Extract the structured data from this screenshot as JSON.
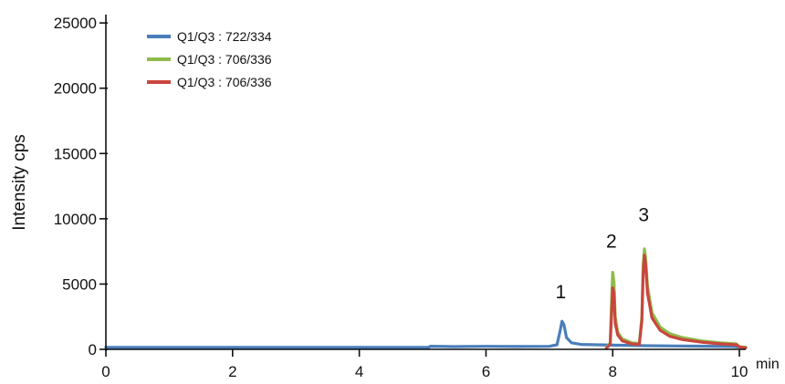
{
  "chart_data": {
    "type": "line",
    "title": "",
    "xlabel": "min",
    "ylabel": "Intensity cps",
    "xlim": [
      0,
      10.1
    ],
    "ylim": [
      0,
      25500
    ],
    "x_ticks": [
      "0",
      "2",
      "4",
      "6",
      "8",
      "10"
    ],
    "y_ticks": [
      "0",
      "5000",
      "10000",
      "15000",
      "20000",
      "25000"
    ],
    "grid": false,
    "legend_position": "top-left",
    "series": [
      {
        "name": "Q1/Q3 : 722/334",
        "color": "#4a7ebb",
        "points": [
          [
            0,
            150
          ],
          [
            5.1,
            150
          ],
          [
            5.12,
            240
          ],
          [
            5.5,
            210
          ],
          [
            6.0,
            230
          ],
          [
            6.5,
            220
          ],
          [
            7.0,
            230
          ],
          [
            7.12,
            350
          ],
          [
            7.17,
            1400
          ],
          [
            7.2,
            2150
          ],
          [
            7.23,
            1900
          ],
          [
            7.27,
            900
          ],
          [
            7.35,
            500
          ],
          [
            7.5,
            380
          ],
          [
            8.0,
            320
          ],
          [
            8.5,
            280
          ],
          [
            9.0,
            260
          ],
          [
            9.5,
            240
          ],
          [
            9.9,
            220
          ],
          [
            10.0,
            180
          ],
          [
            10.1,
            150
          ]
        ]
      },
      {
        "name": "Q1/Q3 : 706/336",
        "color": "#8fbb4a",
        "points": [
          [
            7.9,
            100
          ],
          [
            7.96,
            500
          ],
          [
            7.98,
            3500
          ],
          [
            8.0,
            5900
          ],
          [
            8.02,
            5200
          ],
          [
            8.04,
            2500
          ],
          [
            8.08,
            1300
          ],
          [
            8.15,
            800
          ],
          [
            8.3,
            500
          ],
          [
            8.42,
            450
          ],
          [
            8.46,
            2500
          ],
          [
            8.48,
            6500
          ],
          [
            8.5,
            7700
          ],
          [
            8.52,
            7000
          ],
          [
            8.55,
            4800
          ],
          [
            8.62,
            2800
          ],
          [
            8.75,
            1700
          ],
          [
            8.9,
            1200
          ],
          [
            9.1,
            900
          ],
          [
            9.4,
            650
          ],
          [
            9.7,
            500
          ],
          [
            9.95,
            420
          ],
          [
            10.0,
            200
          ],
          [
            10.1,
            150
          ]
        ]
      },
      {
        "name": "Q1/Q3 : 706/336",
        "color": "#c9463d",
        "points": [
          [
            7.9,
            80
          ],
          [
            7.96,
            400
          ],
          [
            7.98,
            2500
          ],
          [
            8.0,
            4700
          ],
          [
            8.02,
            4300
          ],
          [
            8.04,
            2000
          ],
          [
            8.08,
            1100
          ],
          [
            8.15,
            650
          ],
          [
            8.3,
            420
          ],
          [
            8.42,
            380
          ],
          [
            8.46,
            2200
          ],
          [
            8.48,
            5800
          ],
          [
            8.5,
            7200
          ],
          [
            8.52,
            6500
          ],
          [
            8.55,
            4300
          ],
          [
            8.62,
            2400
          ],
          [
            8.75,
            1450
          ],
          [
            8.9,
            1000
          ],
          [
            9.1,
            750
          ],
          [
            9.4,
            550
          ],
          [
            9.7,
            420
          ],
          [
            9.95,
            350
          ],
          [
            10.0,
            180
          ],
          [
            10.1,
            120
          ]
        ]
      }
    ],
    "annotations": [
      {
        "text": "1",
        "x": 7.18,
        "y": 3900
      },
      {
        "text": "2",
        "x": 7.98,
        "y": 7800
      },
      {
        "text": "3",
        "x": 8.49,
        "y": 9800
      }
    ]
  }
}
